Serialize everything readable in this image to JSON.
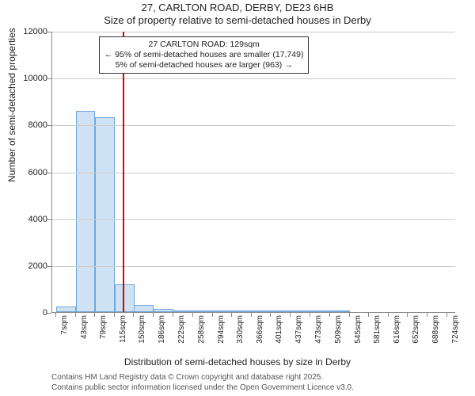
{
  "title": {
    "line1": "27, CARLTON ROAD, DERBY, DE23 6HB",
    "line2": "Size of property relative to semi-detached houses in Derby"
  },
  "ylabel": "Number of semi-detached properties",
  "xlabel": "Distribution of semi-detached houses by size in Derby",
  "footer": {
    "line1": "Contains HM Land Registry data © Crown copyright and database right 2025.",
    "line2": "Contains public sector information licensed under the Open Government Licence v3.0."
  },
  "annotation": {
    "line1": "27 CARLTON ROAD: 129sqm",
    "line2": "← 95% of semi-detached houses are smaller (17,749)",
    "line3": "5% of semi-detached houses are larger (963) →"
  },
  "chart": {
    "type": "histogram",
    "background_color": "#ffffff",
    "grid_color": "#cccccc",
    "axis_color": "#888888",
    "bar_fill": "#cfe2f3",
    "bar_border": "#6fa8dc",
    "vline_color": "#e00000",
    "vline_x": 129,
    "title_fontsize": 13,
    "label_fontsize": 12,
    "tick_fontsize": 11,
    "xtick_fontsize": 10,
    "annotation_fontsize": 10.5,
    "footer_fontsize": 10,
    "ylim": [
      0,
      12000
    ],
    "ytick_step": 2000,
    "xlim": [
      0,
      740
    ],
    "xticks": [
      7,
      43,
      79,
      115,
      150,
      186,
      222,
      258,
      294,
      330,
      366,
      401,
      437,
      473,
      509,
      545,
      581,
      616,
      652,
      688,
      724
    ],
    "xtick_suffix": "sqm",
    "bin_width": 36,
    "bins": [
      {
        "x": 7,
        "count": 250
      },
      {
        "x": 43,
        "count": 8600
      },
      {
        "x": 79,
        "count": 8300
      },
      {
        "x": 115,
        "count": 1200
      },
      {
        "x": 150,
        "count": 300
      },
      {
        "x": 186,
        "count": 120
      },
      {
        "x": 222,
        "count": 80
      },
      {
        "x": 258,
        "count": 50
      },
      {
        "x": 294,
        "count": 30
      },
      {
        "x": 330,
        "count": 20
      },
      {
        "x": 366,
        "count": 10
      },
      {
        "x": 401,
        "count": 10
      },
      {
        "x": 437,
        "count": 5
      },
      {
        "x": 473,
        "count": 5
      },
      {
        "x": 509,
        "count": 5
      },
      {
        "x": 545,
        "count": 0
      },
      {
        "x": 581,
        "count": 0
      },
      {
        "x": 616,
        "count": 0
      },
      {
        "x": 652,
        "count": 0
      },
      {
        "x": 688,
        "count": 0
      },
      {
        "x": 724,
        "count": 0
      }
    ]
  }
}
